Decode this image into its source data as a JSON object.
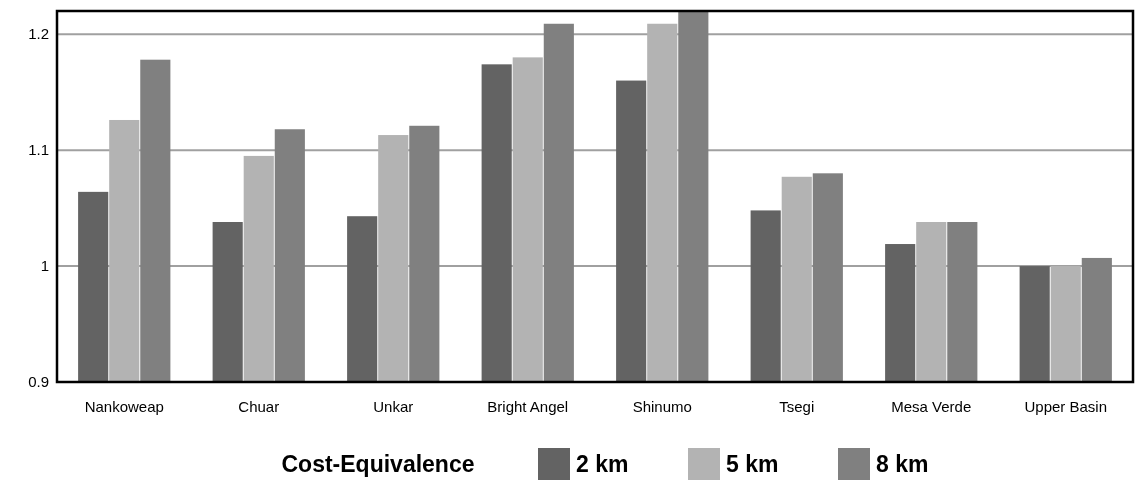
{
  "chart_data": {
    "type": "bar",
    "categories": [
      "Nankoweap",
      "Chuar",
      "Unkar",
      "Bright Angel",
      "Shinumo",
      "Tsegi",
      "Mesa Verde",
      "Upper Basin"
    ],
    "series": [
      {
        "name": "2 km",
        "color": "#636363",
        "values": [
          1.064,
          1.038,
          1.043,
          1.174,
          1.16,
          1.048,
          1.019,
          1.0
        ]
      },
      {
        "name": "5 km",
        "color": "#b3b3b3",
        "values": [
          1.126,
          1.095,
          1.113,
          1.18,
          1.209,
          1.077,
          1.038,
          1.0
        ]
      },
      {
        "name": "8 km",
        "color": "#808080",
        "values": [
          1.178,
          1.118,
          1.121,
          1.209,
          1.22,
          1.08,
          1.038,
          1.007
        ]
      }
    ],
    "ylim": [
      0.9,
      1.22
    ],
    "yticks": [
      0.9,
      1,
      1.1,
      1.2
    ],
    "grid": "y",
    "legend": "bottom",
    "legend_title": "Cost-Equivalence"
  }
}
